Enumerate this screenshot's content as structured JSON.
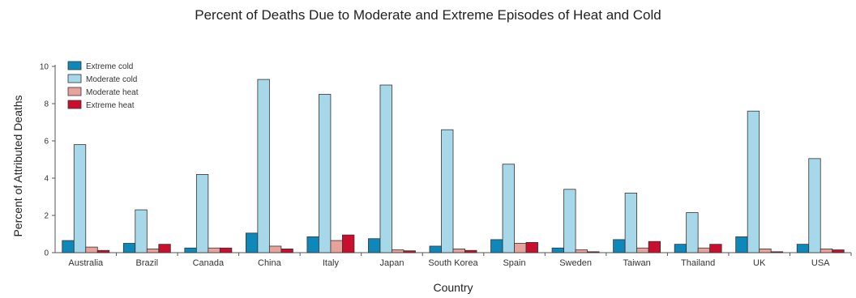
{
  "chart_data": {
    "type": "bar",
    "title": "Percent of Deaths Due to Moderate and Extreme Episodes of Heat and Cold",
    "xlabel": "Country",
    "ylabel": "Percent of Attributed Deaths",
    "ylim": [
      0,
      10
    ],
    "yticks": [
      0,
      2,
      4,
      6,
      8,
      10
    ],
    "grid": false,
    "legend_position": "top-left",
    "categories": [
      "Australia",
      "Brazil",
      "Canada",
      "China",
      "Italy",
      "Japan",
      "South Korea",
      "Spain",
      "Sweden",
      "Taiwan",
      "Thailand",
      "UK",
      "USA"
    ],
    "series": [
      {
        "name": "Extreme cold",
        "color": "#0e88b8",
        "values": [
          0.65,
          0.5,
          0.25,
          1.05,
          0.85,
          0.75,
          0.35,
          0.7,
          0.25,
          0.7,
          0.45,
          0.85,
          0.45
        ]
      },
      {
        "name": "Moderate cold",
        "color": "#a6d8ea",
        "values": [
          5.8,
          2.3,
          4.2,
          9.3,
          8.5,
          9.0,
          6.6,
          4.75,
          3.4,
          3.2,
          2.15,
          7.6,
          5.05
        ]
      },
      {
        "name": "Moderate heat",
        "color": "#e8a29c",
        "values": [
          0.3,
          0.2,
          0.25,
          0.35,
          0.65,
          0.15,
          0.2,
          0.5,
          0.15,
          0.25,
          0.25,
          0.2,
          0.2
        ]
      },
      {
        "name": "Extreme heat",
        "color": "#c8102e",
        "values": [
          0.12,
          0.45,
          0.25,
          0.2,
          0.95,
          0.1,
          0.12,
          0.55,
          0.05,
          0.6,
          0.45,
          0.05,
          0.15
        ]
      }
    ]
  }
}
